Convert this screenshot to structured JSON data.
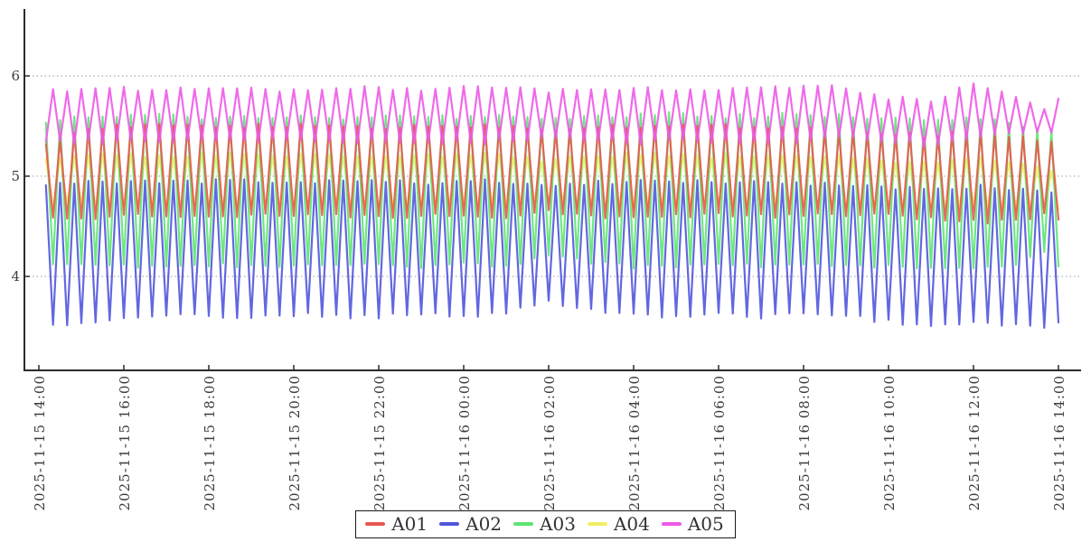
{
  "background": "#ffffff",
  "axis_text_color": "#3c3c3c",
  "axis_line_color": "#2b2b2b",
  "grid_color": "#999999",
  "chart_data": {
    "type": "line",
    "title": "",
    "xlabel": "",
    "ylabel": "",
    "x_axis": {
      "start": "2025-11-15 14:00",
      "end": "2025-11-16 14:00",
      "tick_interval_hours": 2,
      "tick_labels": [
        "2025-11-15 14:00",
        "2025-11-15 16:00",
        "2025-11-15 18:00",
        "2025-11-15 20:00",
        "2025-11-15 22:00",
        "2025-11-16 00:00",
        "2025-11-16 02:00",
        "2025-11-16 04:00",
        "2025-11-16 06:00",
        "2025-11-16 08:00",
        "2025-11-16 10:00",
        "2025-11-16 12:00",
        "2025-11-16 14:00"
      ]
    },
    "y_axis": {
      "ticks": [
        "4",
        "5",
        "6"
      ],
      "tick_values": [
        4,
        5,
        6
      ],
      "min": 3.05,
      "max": 6.68
    },
    "grid": {
      "show": true,
      "style": "dotted",
      "color": "#999999"
    },
    "legend_position": "bottom-center",
    "sampling": {
      "interval_minutes": 10,
      "start_offset_minutes": 10,
      "duration_minutes": 1440,
      "waveform": "triangle wave alternating between low and high envelope every sample (20-minute period)"
    },
    "draw_order": [
      "A04",
      "A03",
      "A02",
      "A01",
      "A05"
    ],
    "series": [
      {
        "name": "A01",
        "color": "#e8584f",
        "peak_phase": "even",
        "high_hourly": [
          5.32,
          5.46,
          5.5,
          5.5,
          5.5,
          5.5,
          5.5,
          5.5,
          5.48,
          5.5,
          5.5,
          5.5,
          5.46,
          5.5,
          5.5,
          5.5,
          5.5,
          5.5,
          5.48,
          5.45,
          5.42,
          5.4,
          5.44,
          5.4,
          5.32
        ],
        "low_hourly": [
          4.56,
          4.58,
          4.6,
          4.6,
          4.6,
          4.62,
          4.6,
          4.6,
          4.6,
          4.6,
          4.62,
          4.6,
          4.66,
          4.6,
          4.6,
          4.6,
          4.62,
          4.6,
          4.6,
          4.62,
          4.6,
          4.58,
          4.55,
          4.55,
          4.65
        ]
      },
      {
        "name": "A02",
        "color": "#5156dd",
        "peak_phase": "even",
        "high_hourly": [
          4.92,
          4.94,
          4.95,
          4.93,
          4.95,
          4.95,
          4.93,
          4.95,
          4.95,
          4.93,
          4.95,
          4.95,
          4.9,
          4.93,
          4.95,
          4.95,
          4.93,
          4.95,
          4.93,
          4.9,
          4.88,
          4.86,
          4.9,
          4.88,
          4.85
        ],
        "low_hourly": [
          3.5,
          3.52,
          3.58,
          3.62,
          3.6,
          3.6,
          3.62,
          3.6,
          3.6,
          3.62,
          3.6,
          3.62,
          3.76,
          3.66,
          3.62,
          3.6,
          3.62,
          3.6,
          3.62,
          3.6,
          3.55,
          3.5,
          3.55,
          3.52,
          3.5
        ]
      },
      {
        "name": "A03",
        "color": "#5ee473",
        "peak_phase": "even",
        "high_hourly": [
          5.55,
          5.58,
          5.6,
          5.6,
          5.58,
          5.6,
          5.6,
          5.58,
          5.6,
          5.6,
          5.58,
          5.6,
          5.56,
          5.6,
          5.6,
          5.62,
          5.6,
          5.6,
          5.62,
          5.6,
          5.58,
          5.55,
          5.6,
          5.52,
          5.45
        ],
        "low_hourly": [
          4.15,
          4.12,
          4.1,
          4.1,
          4.12,
          4.1,
          4.1,
          4.12,
          4.1,
          4.1,
          4.12,
          4.1,
          4.2,
          4.14,
          4.1,
          4.1,
          4.12,
          4.1,
          4.1,
          4.12,
          4.1,
          4.08,
          4.1,
          4.12,
          4.3
        ]
      },
      {
        "name": "A04",
        "color": "#f0ee63",
        "peak_phase": "even",
        "high_hourly": [
          5.18,
          5.2,
          5.22,
          5.2,
          5.22,
          5.2,
          5.2,
          5.22,
          5.2,
          5.2,
          5.22,
          5.2,
          5.16,
          5.2,
          5.22,
          5.2,
          5.2,
          5.22,
          5.2,
          5.18,
          5.15,
          5.12,
          5.18,
          5.12,
          5.05
        ],
        "low_hourly": [
          4.68,
          4.7,
          4.68,
          4.68,
          4.7,
          4.68,
          4.68,
          4.7,
          4.68,
          4.68,
          4.7,
          4.68,
          4.74,
          4.68,
          4.68,
          4.7,
          4.68,
          4.68,
          4.7,
          4.68,
          4.66,
          4.64,
          4.68,
          4.66,
          4.62
        ]
      },
      {
        "name": "A05",
        "color": "#ee59e8",
        "peak_phase": "odd",
        "high_hourly": [
          5.84,
          5.88,
          5.88,
          5.86,
          5.88,
          5.88,
          5.86,
          5.88,
          5.88,
          5.86,
          5.88,
          5.88,
          5.85,
          5.88,
          5.88,
          5.86,
          5.88,
          5.88,
          5.9,
          5.88,
          5.78,
          5.76,
          5.92,
          5.78,
          5.62
        ],
        "low_hourly": [
          5.36,
          5.33,
          5.35,
          5.35,
          5.33,
          5.35,
          5.35,
          5.33,
          5.35,
          5.35,
          5.33,
          5.35,
          5.38,
          5.35,
          5.33,
          5.35,
          5.35,
          5.33,
          5.35,
          5.38,
          5.34,
          5.3,
          5.4,
          5.42,
          5.46
        ]
      }
    ]
  }
}
